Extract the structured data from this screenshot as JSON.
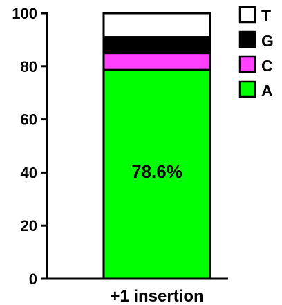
{
  "chart_data": {
    "type": "bar",
    "stacked": true,
    "categories": [
      "+1 insertion"
    ],
    "ylim": [
      0,
      100
    ],
    "yticks": [
      0,
      20,
      40,
      60,
      80,
      100
    ],
    "ytick_labels": [
      "0",
      "20",
      "40",
      "60",
      "80",
      "100"
    ],
    "series": [
      {
        "name": "A",
        "values": [
          78.6
        ],
        "color": "#00ff00"
      },
      {
        "name": "C",
        "values": [
          6.4
        ],
        "color": "#ff40ff"
      },
      {
        "name": "G",
        "values": [
          6.0
        ],
        "color": "#000000"
      },
      {
        "name": "T",
        "values": [
          9.0
        ],
        "color": "#ffffff"
      }
    ],
    "legend": [
      "T",
      "G",
      "C",
      "A"
    ],
    "legend_position": "top-right",
    "annotation": "78.6%",
    "grid": false
  }
}
